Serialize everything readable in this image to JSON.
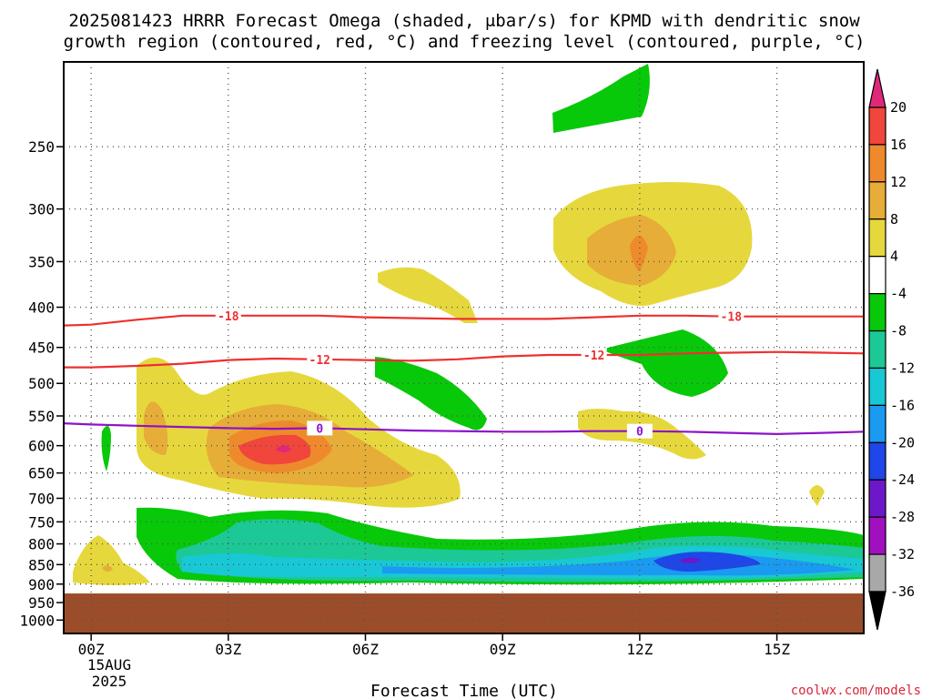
{
  "chart_data": {
    "type": "area",
    "title_line1": "2025081423 HRRR Forecast Omega (shaded, μbar/s) for KPMD with dendritic snow",
    "title_line2": "growth region (contoured, red, °C) and freezing level (contoured, purple, °C)",
    "xlabel": "Forecast Time (UTC)",
    "ylabel": "",
    "x_ticks": [
      "00Z",
      "03Z",
      "06Z",
      "09Z",
      "12Z",
      "15Z"
    ],
    "x_tick_values": [
      0,
      3,
      6,
      9,
      12,
      15
    ],
    "x_date_lines": [
      "15AUG",
      "2025"
    ],
    "xlim": [
      -0.6,
      16.9
    ],
    "y_ticks": [
      "250",
      "300",
      "350",
      "400",
      "450",
      "500",
      "550",
      "600",
      "650",
      "700",
      "750",
      "800",
      "850",
      "900",
      "950",
      "1000"
    ],
    "y_tick_values": [
      250,
      300,
      350,
      400,
      450,
      500,
      550,
      600,
      650,
      700,
      750,
      800,
      850,
      900,
      950,
      1000
    ],
    "ylim_hPa": [
      195,
      1040
    ],
    "y_scale": "log-pressure (inverted)",
    "grid": true,
    "ground_level_hPa": 925,
    "ground_color": "#9b4d2a",
    "colorbar": {
      "labels": [
        "20",
        "16",
        "12",
        "8",
        "4",
        "-4",
        "-8",
        "-12",
        "-16",
        "-20",
        "-24",
        "-28",
        "-32",
        "-36"
      ],
      "colors": [
        "#e0287a",
        "#f0463c",
        "#ee8a2c",
        "#e6ad38",
        "#e6d83c",
        "#ffffff",
        "#08c80a",
        "#1cc896",
        "#18c8d4",
        "#1a9af0",
        "#1e46e8",
        "#6c18c8",
        "#a010c0",
        "#a8a8a8",
        "#000000"
      ]
    },
    "contours": [
      {
        "label": "-18",
        "color": "#ee3030",
        "x": [
          -0.6,
          0,
          1,
          2,
          3,
          4,
          5,
          6,
          7,
          8,
          9,
          10,
          11,
          12,
          13,
          14,
          15,
          16,
          16.9
        ],
        "y_hPa": [
          422,
          421,
          415,
          410,
          410,
          410,
          410,
          412,
          413,
          414,
          414,
          414,
          412,
          410,
          410,
          411,
          411,
          411,
          411
        ]
      },
      {
        "label": "-12",
        "color": "#ee3030",
        "x": [
          -0.6,
          0,
          1,
          2,
          3,
          4,
          5,
          6,
          7,
          8,
          9,
          10,
          11,
          12,
          13,
          14,
          15,
          16,
          16.9
        ],
        "y_hPa": [
          477,
          477,
          475,
          472,
          467,
          465,
          466,
          467,
          468,
          466,
          462,
          460,
          460,
          460,
          458,
          457,
          456,
          457,
          458
        ]
      },
      {
        "label": "0",
        "color": "#8e12c8",
        "x": [
          -0.6,
          0,
          1,
          2,
          3,
          4,
          5,
          6,
          7,
          8,
          9,
          10,
          11,
          12,
          13,
          14,
          15,
          16,
          16.9
        ],
        "y_hPa": [
          562,
          564,
          566,
          568,
          570,
          571,
          570,
          572,
          574,
          575,
          576,
          576,
          575,
          575,
          576,
          578,
          580,
          578,
          576
        ]
      }
    ]
  },
  "credit": "coolwx.com/models"
}
